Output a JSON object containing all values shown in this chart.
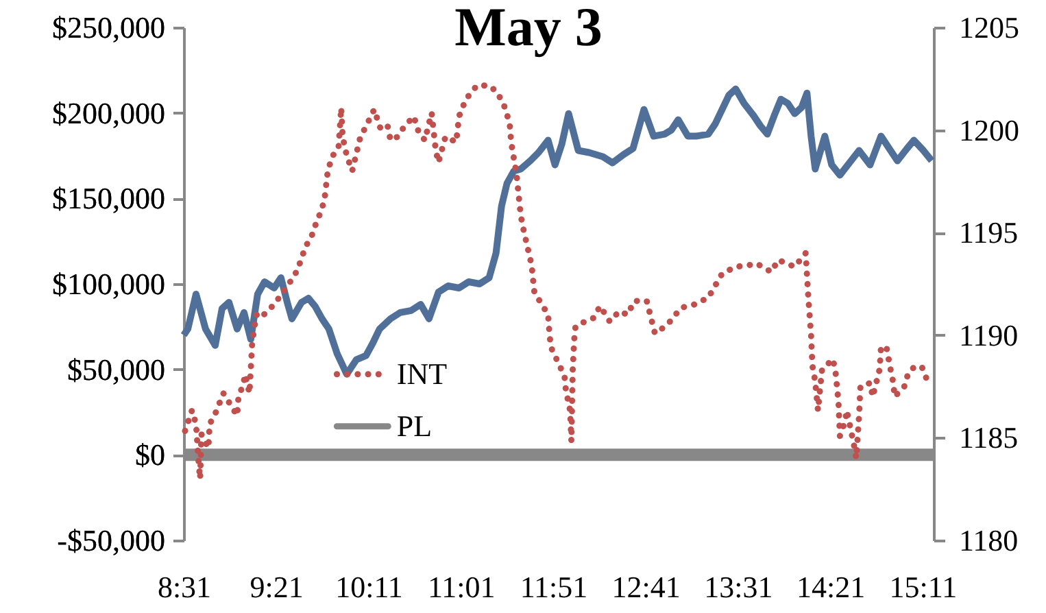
{
  "chart_data": {
    "type": "line",
    "title": "May 3",
    "legend": "bottom left",
    "grid": false,
    "marker": "none",
    "xlim": [
      8.5167,
      15.2833
    ],
    "xticks": [
      {
        "value": 8.5167,
        "label": "8:31"
      },
      {
        "value": 9.35,
        "label": "9:21"
      },
      {
        "value": 10.1833,
        "label": "10:11"
      },
      {
        "value": 11.0167,
        "label": "11:01"
      },
      {
        "value": 11.85,
        "label": "11:51"
      },
      {
        "value": 12.6833,
        "label": "12:41"
      },
      {
        "value": 13.5167,
        "label": "13:31"
      },
      {
        "value": 14.35,
        "label": "14:21"
      },
      {
        "value": 15.1833,
        "label": "15:11"
      }
    ],
    "ylim": [
      -50000,
      250000
    ],
    "yticks": [
      {
        "value": -50000,
        "label": "-$50,000"
      },
      {
        "value": 0,
        "label": "$0"
      },
      {
        "value": 50000,
        "label": "$50,000"
      },
      {
        "value": 100000,
        "label": "$100,000"
      },
      {
        "value": 150000,
        "label": "$150,000"
      },
      {
        "value": 200000,
        "label": "$200,000"
      },
      {
        "value": 250000,
        "label": "$250,000"
      }
    ],
    "y2lim": [
      1180,
      1205
    ],
    "y2ticks": [
      1180,
      1185,
      1190,
      1195,
      1200,
      1205
    ],
    "series": [
      {
        "name": "INT",
        "color": "#c0504d",
        "line_style": "dotted",
        "x": [
          8.529,
          8.591,
          8.628,
          8.653,
          8.665,
          8.677,
          8.739,
          8.751,
          8.801,
          8.875,
          8.999,
          9.011,
          9.048,
          9.073,
          9.11,
          9.122,
          9.135,
          9.172,
          9.209,
          9.333,
          9.456,
          9.543,
          9.617,
          9.666,
          9.703,
          9.765,
          9.79,
          9.815,
          9.852,
          9.914,
          9.938,
          9.951,
          9.988,
          10.037,
          10.111,
          10.161,
          10.235,
          10.297,
          10.358,
          10.383,
          10.445,
          10.507,
          10.593,
          10.63,
          10.692,
          10.754,
          10.791,
          10.816,
          10.878,
          10.976,
          11.001,
          11.063,
          11.162,
          11.273,
          11.347,
          11.409,
          11.458,
          11.471,
          11.52,
          11.558,
          11.582,
          11.656,
          11.681,
          11.805,
          11.817,
          11.83,
          11.953,
          11.965,
          12.003,
          12.015,
          12.027,
          12.04,
          12.052,
          12.138,
          12.213,
          12.274,
          12.361,
          12.447,
          12.522,
          12.583,
          12.695,
          12.769,
          12.88,
          13.004,
          13.128,
          13.251,
          13.375,
          13.498,
          13.622,
          13.684,
          13.819,
          13.881,
          14.03,
          14.129,
          14.153,
          14.178,
          14.19,
          14.215,
          14.24,
          14.277,
          14.376,
          14.401,
          14.425,
          14.438,
          14.487,
          14.5,
          14.561,
          14.586,
          14.611,
          14.623,
          14.71,
          14.734,
          14.796,
          14.809,
          14.858,
          14.895,
          14.92,
          14.932,
          15.019,
          15.056,
          15.118,
          15.18,
          15.229
        ],
        "values": [
          14000,
          26000,
          18000,
          -6000,
          -14000,
          12000,
          4000,
          18000,
          24000,
          36000,
          23000,
          34000,
          40000,
          47000,
          36000,
          50000,
          66000,
          82000,
          80000,
          88000,
          99000,
          108000,
          122000,
          127000,
          134000,
          144000,
          151000,
          165000,
          174000,
          180000,
          203000,
          186000,
          175000,
          166000,
          186000,
          192000,
          202000,
          190000,
          192000,
          184000,
          186000,
          192000,
          198000,
          190000,
          184000,
          200000,
          178000,
          171000,
          186000,
          183000,
          198000,
          208000,
          216000,
          216000,
          212000,
          204000,
          194000,
          183000,
          164000,
          140000,
          132000,
          111000,
          95000,
          82000,
          71000,
          63000,
          46000,
          38000,
          26000,
          8000,
          50000,
          67000,
          75000,
          78000,
          80000,
          87000,
          78000,
          84000,
          82000,
          90000,
          90000,
          71000,
          76000,
          86000,
          88000,
          92000,
          106000,
          110000,
          111000,
          112000,
          107000,
          114000,
          110000,
          118000,
          92000,
          70000,
          52000,
          43000,
          26000,
          50000,
          56000,
          47000,
          31000,
          11000,
          20000,
          26000,
          7000,
          -2000,
          23000,
          40000,
          42000,
          34000,
          50000,
          63000,
          63000,
          50000,
          42000,
          34000,
          40000,
          48000,
          52000,
          51000,
          43000
        ]
      },
      {
        "name": "PL",
        "color": "#888888",
        "line_style": "solid",
        "x": [
          8.5167,
          15.2833
        ],
        "values": [
          0,
          0
        ]
      },
      {
        "color": "#50709a",
        "line_style": "solid",
        "axis": "y2",
        "x": [
          8.517,
          8.554,
          8.628,
          8.714,
          8.801,
          8.863,
          8.925,
          8.999,
          9.061,
          9.122,
          9.184,
          9.246,
          9.333,
          9.394,
          9.456,
          9.493,
          9.58,
          9.642,
          9.703,
          9.765,
          9.827,
          9.901,
          9.988,
          10.074,
          10.161,
          10.222,
          10.284,
          10.383,
          10.47,
          10.569,
          10.655,
          10.73,
          10.816,
          10.903,
          11.001,
          11.088,
          11.187,
          11.273,
          11.335,
          11.385,
          11.434,
          11.496,
          11.558,
          11.644,
          11.718,
          11.805,
          11.867,
          11.928,
          11.99,
          12.077,
          12.175,
          12.299,
          12.386,
          12.485,
          12.571,
          12.67,
          12.757,
          12.855,
          12.917,
          12.979,
          13.066,
          13.14,
          13.251,
          13.313,
          13.375,
          13.437,
          13.498,
          13.573,
          13.659,
          13.721,
          13.783,
          13.845,
          13.906,
          13.968,
          14.03,
          14.092,
          14.141,
          14.178,
          14.215,
          14.302,
          14.364,
          14.438,
          14.524,
          14.611,
          14.71,
          14.809,
          14.895,
          14.957,
          15.044,
          15.106,
          15.192,
          15.266
        ],
        "values": [
          1190.0,
          1190.3,
          1192.0,
          1190.3,
          1189.5,
          1191.3,
          1191.6,
          1190.3,
          1191.1,
          1189.8,
          1192.0,
          1192.6,
          1192.3,
          1192.8,
          1191.5,
          1190.8,
          1191.6,
          1191.8,
          1191.4,
          1190.8,
          1190.3,
          1189.1,
          1188.1,
          1188.8,
          1189.0,
          1189.6,
          1190.3,
          1190.8,
          1191.1,
          1191.2,
          1191.5,
          1190.8,
          1192.1,
          1192.4,
          1192.3,
          1192.6,
          1192.5,
          1192.8,
          1194.0,
          1196.3,
          1197.4,
          1198.0,
          1198.1,
          1198.5,
          1198.9,
          1199.5,
          1198.3,
          1199.3,
          1200.8,
          1199.0,
          1198.9,
          1198.7,
          1198.4,
          1198.8,
          1199.1,
          1201.0,
          1199.7,
          1199.8,
          1200.0,
          1200.5,
          1199.7,
          1199.7,
          1199.8,
          1200.3,
          1201.0,
          1201.7,
          1202.0,
          1201.3,
          1200.7,
          1200.2,
          1199.8,
          1200.7,
          1201.5,
          1201.3,
          1200.8,
          1201.1,
          1201.8,
          1199.7,
          1198.1,
          1199.7,
          1198.3,
          1197.8,
          1198.4,
          1199.0,
          1198.3,
          1199.7,
          1199.0,
          1198.5,
          1199.1,
          1199.5,
          1199.0,
          1198.5
        ]
      }
    ]
  }
}
